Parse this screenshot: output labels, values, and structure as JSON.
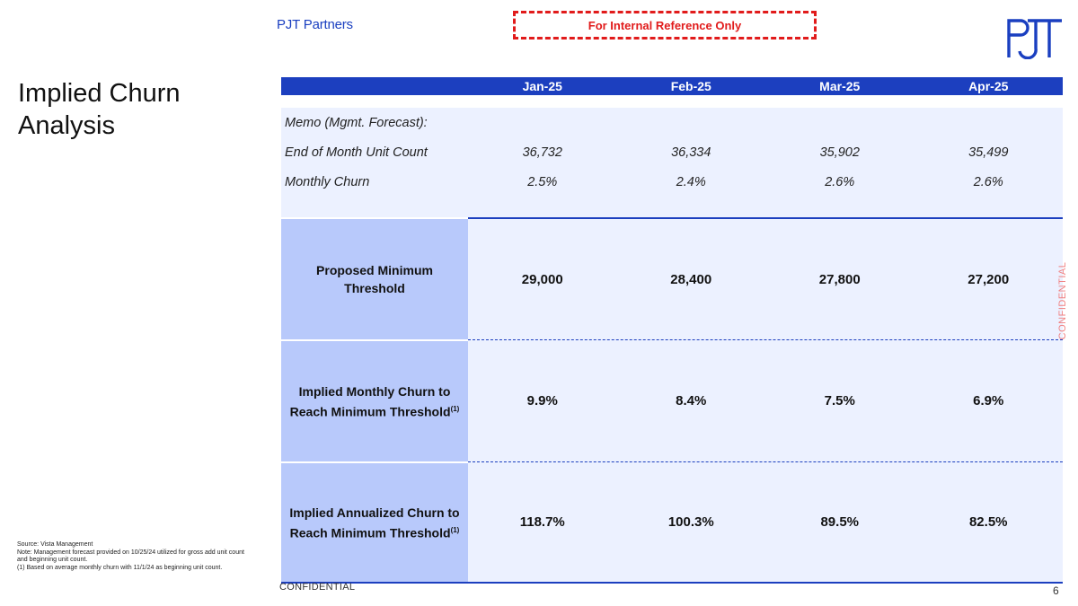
{
  "header": {
    "brand": "PJT Partners",
    "internal_notice": "For Internal Reference Only"
  },
  "title": "Implied Churn Analysis",
  "table": {
    "columns": [
      "Jan-25",
      "Feb-25",
      "Mar-25",
      "Apr-25"
    ],
    "memo": {
      "heading": "Memo (Mgmt. Forecast):",
      "rows": [
        {
          "label": "End of Month Unit Count",
          "values": [
            "36,732",
            "36,334",
            "35,902",
            "35,499"
          ]
        },
        {
          "label": "Monthly Churn",
          "values": [
            "2.5%",
            "2.4%",
            "2.6%",
            "2.6%"
          ]
        }
      ]
    },
    "blocks": [
      {
        "label_line1": "Proposed Minimum",
        "label_line2": "Threshold",
        "footnote": "",
        "values": [
          "29,000",
          "28,400",
          "27,800",
          "27,200"
        ]
      },
      {
        "label_line1": "Implied Monthly Churn to",
        "label_line2": "Reach Minimum Threshold",
        "footnote": "(1)",
        "values": [
          "9.9%",
          "8.4%",
          "7.5%",
          "6.9%"
        ]
      },
      {
        "label_line1": "Implied Annualized Churn to",
        "label_line2": "Reach Minimum Threshold",
        "footnote": "(1)",
        "values": [
          "118.7%",
          "100.3%",
          "89.5%",
          "82.5%"
        ]
      }
    ]
  },
  "notes": {
    "source": "Source: Vista Management",
    "note": "Note: Management forecast provided on 10/25/24 utilized for gross add unit count and beginning unit count.",
    "footnote1": "(1)  Based on average monthly churn with 11/1/24 as beginning unit count."
  },
  "footer": {
    "confidential": "CONFIDENTIAL",
    "side_confidential": "CONFIDENTIAL",
    "page_number": "6"
  },
  "colors": {
    "accent": "#1c3fbf",
    "label_fill": "#b8c9fb",
    "row_fill": "#ecf1ff",
    "notice_red": "#e11b1b"
  }
}
